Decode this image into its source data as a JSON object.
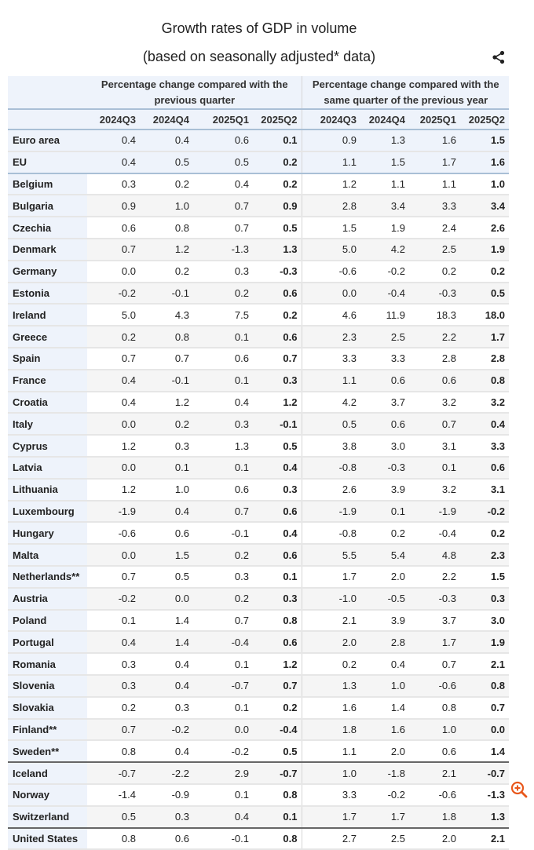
{
  "title": "Growth rates of GDP in volume",
  "subtitle": "(based on seasonally adjusted* data)",
  "icons": {
    "share": "share-icon",
    "zoom": "zoom-in-icon",
    "accent": "#e8581c"
  },
  "table": {
    "group_headers": [
      "Percentage change compared with the previous quarter",
      "Percentage change compared with the same quarter of the previous year"
    ],
    "columns": [
      "2024Q3",
      "2024Q4",
      "2025Q1",
      "2025Q2",
      "2024Q3",
      "2024Q4",
      "2025Q1",
      "2025Q2"
    ],
    "rows": [
      {
        "name": "Euro area",
        "v": [
          "0.4",
          "0.4",
          "0.6",
          "0.1",
          "0.9",
          "1.3",
          "1.6",
          "1.5"
        ]
      },
      {
        "name": "EU",
        "v": [
          "0.4",
          "0.5",
          "0.5",
          "0.2",
          "1.1",
          "1.5",
          "1.7",
          "1.6"
        ]
      },
      {
        "name": "Belgium",
        "v": [
          "0.3",
          "0.2",
          "0.4",
          "0.2",
          "1.2",
          "1.1",
          "1.1",
          "1.0"
        ]
      },
      {
        "name": "Bulgaria",
        "v": [
          "0.9",
          "1.0",
          "0.7",
          "0.9",
          "2.8",
          "3.4",
          "3.3",
          "3.4"
        ]
      },
      {
        "name": "Czechia",
        "v": [
          "0.6",
          "0.8",
          "0.7",
          "0.5",
          "1.5",
          "1.9",
          "2.4",
          "2.6"
        ]
      },
      {
        "name": "Denmark",
        "v": [
          "0.7",
          "1.2",
          "-1.3",
          "1.3",
          "5.0",
          "4.2",
          "2.5",
          "1.9"
        ]
      },
      {
        "name": "Germany",
        "v": [
          "0.0",
          "0.2",
          "0.3",
          "-0.3",
          "-0.6",
          "-0.2",
          "0.2",
          "0.2"
        ]
      },
      {
        "name": "Estonia",
        "v": [
          "-0.2",
          "-0.1",
          "0.2",
          "0.6",
          "0.0",
          "-0.4",
          "-0.3",
          "0.5"
        ]
      },
      {
        "name": "Ireland",
        "v": [
          "5.0",
          "4.3",
          "7.5",
          "0.2",
          "4.6",
          "11.9",
          "18.3",
          "18.0"
        ]
      },
      {
        "name": "Greece",
        "v": [
          "0.2",
          "0.8",
          "0.1",
          "0.6",
          "2.3",
          "2.5",
          "2.2",
          "1.7"
        ]
      },
      {
        "name": "Spain",
        "v": [
          "0.7",
          "0.7",
          "0.6",
          "0.7",
          "3.3",
          "3.3",
          "2.8",
          "2.8"
        ]
      },
      {
        "name": "France",
        "v": [
          "0.4",
          "-0.1",
          "0.1",
          "0.3",
          "1.1",
          "0.6",
          "0.6",
          "0.8"
        ]
      },
      {
        "name": "Croatia",
        "v": [
          "0.4",
          "1.2",
          "0.4",
          "1.2",
          "4.2",
          "3.7",
          "3.2",
          "3.2"
        ]
      },
      {
        "name": "Italy",
        "v": [
          "0.0",
          "0.2",
          "0.3",
          "-0.1",
          "0.5",
          "0.6",
          "0.7",
          "0.4"
        ]
      },
      {
        "name": "Cyprus",
        "v": [
          "1.2",
          "0.3",
          "1.3",
          "0.5",
          "3.8",
          "3.0",
          "3.1",
          "3.3"
        ]
      },
      {
        "name": "Latvia",
        "v": [
          "0.0",
          "0.1",
          "0.1",
          "0.4",
          "-0.8",
          "-0.3",
          "0.1",
          "0.6"
        ]
      },
      {
        "name": "Lithuania",
        "v": [
          "1.2",
          "1.0",
          "0.6",
          "0.3",
          "2.6",
          "3.9",
          "3.2",
          "3.1"
        ]
      },
      {
        "name": "Luxembourg",
        "v": [
          "-1.9",
          "0.4",
          "0.7",
          "0.6",
          "-1.9",
          "0.1",
          "-1.9",
          "-0.2"
        ]
      },
      {
        "name": "Hungary",
        "v": [
          "-0.6",
          "0.6",
          "-0.1",
          "0.4",
          "-0.8",
          "0.2",
          "-0.4",
          "0.2"
        ]
      },
      {
        "name": "Malta",
        "v": [
          "0.0",
          "1.5",
          "0.2",
          "0.6",
          "5.5",
          "5.4",
          "4.8",
          "2.3"
        ]
      },
      {
        "name": "Netherlands**",
        "v": [
          "0.7",
          "0.5",
          "0.3",
          "0.1",
          "1.7",
          "2.0",
          "2.2",
          "1.5"
        ]
      },
      {
        "name": "Austria",
        "v": [
          "-0.2",
          "0.0",
          "0.2",
          "0.3",
          "-1.0",
          "-0.5",
          "-0.3",
          "0.3"
        ]
      },
      {
        "name": "Poland",
        "v": [
          "0.1",
          "1.4",
          "0.7",
          "0.8",
          "2.1",
          "3.9",
          "3.7",
          "3.0"
        ]
      },
      {
        "name": "Portugal",
        "v": [
          "0.4",
          "1.4",
          "-0.4",
          "0.6",
          "2.0",
          "2.8",
          "1.7",
          "1.9"
        ]
      },
      {
        "name": "Romania",
        "v": [
          "0.3",
          "0.4",
          "0.1",
          "1.2",
          "0.2",
          "0.4",
          "0.7",
          "2.1"
        ]
      },
      {
        "name": "Slovenia",
        "v": [
          "0.3",
          "0.4",
          "-0.7",
          "0.7",
          "1.3",
          "1.0",
          "-0.6",
          "0.8"
        ]
      },
      {
        "name": "Slovakia",
        "v": [
          "0.2",
          "0.3",
          "0.1",
          "0.2",
          "1.6",
          "1.4",
          "0.8",
          "0.7"
        ]
      },
      {
        "name": "Finland**",
        "v": [
          "0.7",
          "-0.2",
          "0.0",
          "-0.4",
          "1.8",
          "1.6",
          "1.0",
          "0.0"
        ]
      },
      {
        "name": "Sweden**",
        "v": [
          "0.8",
          "0.4",
          "-0.2",
          "0.5",
          "1.1",
          "2.0",
          "0.6",
          "1.4"
        ]
      },
      {
        "name": "Iceland",
        "v": [
          "-0.7",
          "-2.2",
          "2.9",
          "-0.7",
          "1.0",
          "-1.8",
          "2.1",
          "-0.7"
        ]
      },
      {
        "name": "Norway",
        "v": [
          "-1.4",
          "-0.9",
          "0.1",
          "0.8",
          "3.3",
          "-0.2",
          "-0.6",
          "-1.3"
        ]
      },
      {
        "name": "Switzerland",
        "v": [
          "0.5",
          "0.3",
          "0.4",
          "0.1",
          "1.7",
          "1.7",
          "1.8",
          "1.3"
        ]
      },
      {
        "name": "United States",
        "v": [
          "0.8",
          "0.6",
          "-0.1",
          "0.8",
          "2.7",
          "2.5",
          "2.0",
          "2.1"
        ]
      }
    ]
  }
}
